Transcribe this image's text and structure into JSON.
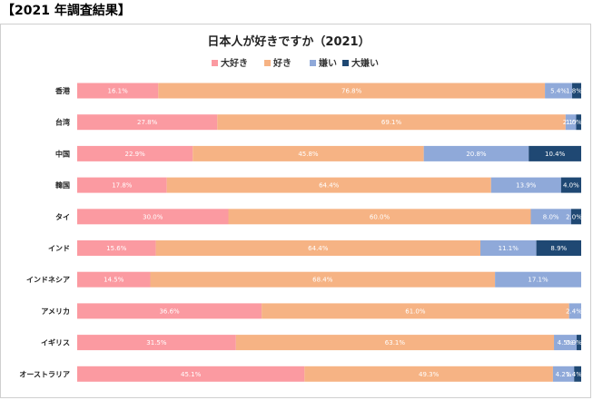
{
  "page": {
    "heading": "【2021 年調査結果】"
  },
  "chart_data": {
    "type": "bar",
    "orientation": "horizontal",
    "stacked": true,
    "normalized": true,
    "title": "日本人が好きですか（2021）",
    "legend_position": "top",
    "categories": [
      "香港",
      "台湾",
      "中国",
      "韓国",
      "タイ",
      "インド",
      "インドネシア",
      "アメリカ",
      "イギリス",
      "オーストラリア"
    ],
    "series": [
      {
        "name": "大好き",
        "color": "#fb9aa1",
        "values": [
          16.1,
          27.8,
          22.9,
          17.8,
          30.0,
          15.6,
          14.5,
          36.6,
          31.5,
          45.1
        ],
        "labels": [
          "16.1%",
          "27.8%",
          "22.9%",
          "17.8%",
          "30.0%",
          "15.6%",
          "14.5%",
          "36.6%",
          "31.5%",
          "45.1%"
        ]
      },
      {
        "name": "好き",
        "color": "#f6b384",
        "values": [
          76.8,
          69.1,
          45.8,
          64.4,
          60.0,
          64.4,
          68.4,
          61.0,
          63.1,
          49.3
        ],
        "labels": [
          "76.8%",
          "69.1%",
          "45.8%",
          "64.4%",
          "60.0%",
          "64.4%",
          "68.4%",
          "61.0%",
          "63.1%",
          "49.3%"
        ]
      },
      {
        "name": "嫌い",
        "color": "#8fa9d9",
        "values": [
          5.4,
          2.1,
          20.8,
          13.9,
          8.0,
          11.1,
          17.1,
          2.4,
          4.5,
          4.2
        ],
        "labels": [
          "5.4%",
          "2.1%",
          "20.8%",
          "13.9%",
          "8.0%",
          "11.1%",
          "17.1%",
          "2.4%",
          "4.5%",
          "4.2%"
        ]
      },
      {
        "name": "大嫌い",
        "color": "#1f4873",
        "values": [
          1.8,
          1.0,
          10.4,
          4.0,
          2.0,
          8.9,
          0,
          0,
          0.9,
          1.4
        ],
        "labels": [
          "1.8%",
          "1.0%",
          "10.4%",
          "4.0%",
          "2.0%",
          "8.9%",
          "",
          "",
          "0.9%",
          "1.4%"
        ]
      }
    ]
  }
}
